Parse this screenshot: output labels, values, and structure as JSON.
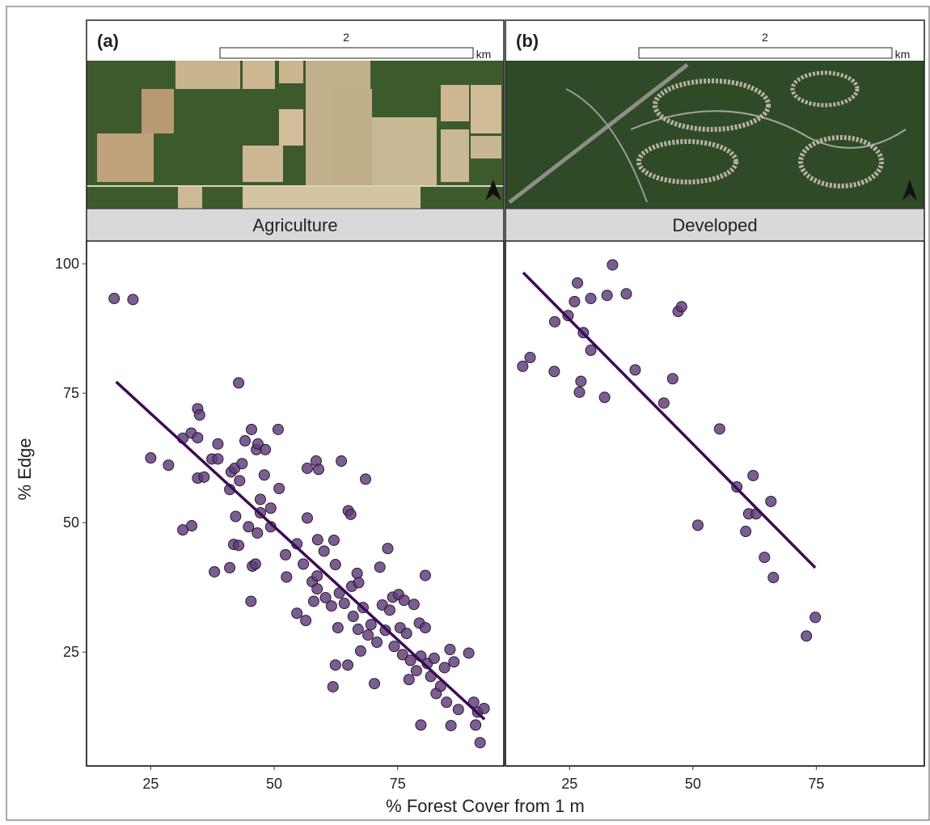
{
  "x_label": "% Forest Cover from 1 m",
  "y_label": "% Edge",
  "chart_data": [
    {
      "type": "scatter",
      "panel_label": "(a)",
      "scale_label": "2",
      "scale_unit": "km",
      "title": "Agriculture",
      "color": "#5e3a78",
      "line_color": "#3d0a57",
      "xlim": [
        12,
        96.5
      ],
      "ylim": [
        3,
        104.4
      ],
      "xticks": [
        25,
        50,
        75
      ],
      "yticks": [
        25,
        50,
        75,
        100
      ],
      "x": [
        17.6,
        21.4,
        25,
        28.6,
        31.5,
        33.2,
        34.5,
        34.9,
        34.5,
        31.5,
        33.3,
        34.5,
        35.8,
        37.4,
        38.6,
        38.6,
        37.9,
        41.0,
        42.8,
        41.3,
        42.0,
        43.0,
        43.5,
        44.1,
        45.4,
        46.4,
        46.7,
        41.0,
        42.2,
        41.8,
        42.8,
        44.8,
        45.6,
        45.3,
        46.2,
        46.6,
        47.2,
        47.2,
        48.0,
        48.2,
        49.3,
        49.3,
        50.8,
        51.0,
        52.3,
        52.5,
        54.6,
        54.6,
        55.9,
        56.4,
        56.7,
        56.7,
        57.7,
        58.0,
        58.5,
        59.0,
        58.7,
        58.7,
        58.8,
        60.1,
        60.4,
        61.6,
        62.1,
        62.4,
        61.9,
        62.4,
        62.9,
        63.2,
        63.6,
        64.2,
        65.0,
        65.5,
        64.9,
        65.7,
        66.0,
        66.8,
        67.0,
        67.1,
        67.5,
        68.0,
        68.5,
        69.0,
        69.6,
        70.3,
        70.8,
        71.4,
        71.9,
        72.5,
        73.0,
        73.4,
        74.0,
        74.3,
        75.2,
        75.5,
        76.0,
        76.3,
        76.8,
        77.3,
        77.6,
        78.3,
        78.8,
        79.4,
        79.7,
        80.6,
        79.7,
        80.6,
        81.0,
        81.7,
        82.4,
        82.8,
        83.7,
        84.5,
        84.9,
        85.6,
        86.4,
        87.3,
        89.4,
        90.4,
        91.2,
        91.7,
        92.5,
        90.8,
        85.8
      ],
      "y": [
        93.3,
        93.1,
        62.5,
        61.1,
        66.3,
        67.3,
        72.0,
        70.8,
        66.4,
        48.6,
        49.4,
        58.6,
        58.8,
        62.3,
        62.3,
        65.2,
        40.5,
        41.3,
        77.0,
        59.8,
        60.5,
        58.1,
        61.4,
        65.8,
        68.0,
        64.1,
        65.2,
        56.4,
        51.2,
        45.8,
        45.6,
        49.2,
        41.6,
        34.8,
        42.0,
        48.0,
        51.9,
        54.5,
        59.2,
        64.1,
        52.8,
        49.2,
        68.0,
        56.6,
        43.8,
        39.5,
        45.9,
        32.5,
        42.0,
        31.1,
        60.5,
        50.9,
        38.6,
        34.8,
        61.9,
        60.3,
        39.7,
        37.2,
        46.7,
        44.5,
        35.5,
        33.9,
        46.6,
        41.9,
        18.3,
        22.5,
        29.7,
        36.4,
        61.9,
        34.4,
        52.3,
        51.6,
        22.5,
        37.7,
        31.9,
        40.2,
        29.4,
        38.4,
        25.2,
        33.6,
        58.4,
        28.3,
        30.3,
        18.9,
        26.9,
        41.4,
        34.1,
        29.2,
        45.0,
        33.1,
        35.6,
        26.1,
        36.1,
        29.7,
        24.5,
        35.0,
        28.6,
        19.7,
        23.4,
        34.2,
        21.4,
        30.6,
        24.2,
        39.8,
        10.9,
        29.7,
        22.8,
        20.3,
        23.8,
        17.0,
        18.4,
        22.0,
        15.3,
        25.5,
        23.1,
        13.9,
        24.8,
        15.3,
        13.4,
        7.5,
        14.1,
        10.9,
        10.8
      ],
      "fit": {
        "x": [
          18.0,
          92.6
        ],
        "y": [
          77.2,
          12.0
        ]
      }
    },
    {
      "type": "scatter",
      "panel_label": "(b)",
      "scale_label": "2",
      "scale_unit": "km",
      "title": "Developed",
      "color": "#5e3a78",
      "line_color": "#3d0a57",
      "xlim": [
        12,
        96.9
      ],
      "ylim": [
        3,
        104.4
      ],
      "xticks": [
        25,
        50,
        75
      ],
      "x": [
        15.5,
        17.0,
        21.9,
        22.0,
        24.7,
        26.0,
        26.6,
        27.8,
        27.3,
        27.0,
        29.3,
        29.3,
        32.1,
        32.6,
        33.7,
        36.5,
        38.3,
        44.1,
        45.9,
        47.0,
        47.7,
        51.0,
        55.4,
        58.9,
        60.7,
        61.3,
        62.2,
        62.8,
        64.5,
        65.8,
        66.3,
        73.0,
        74.8
      ],
      "y": [
        80.2,
        81.9,
        79.2,
        88.8,
        90.0,
        92.7,
        96.3,
        86.7,
        77.3,
        75.2,
        93.3,
        83.3,
        74.2,
        93.9,
        99.8,
        94.2,
        79.5,
        73.1,
        77.8,
        90.8,
        91.7,
        49.5,
        68.1,
        56.9,
        48.3,
        51.7,
        59.1,
        51.7,
        43.3,
        54.1,
        39.4,
        28.1,
        31.7
      ],
      "fit": {
        "x": [
          15.6,
          74.8
        ],
        "y": [
          98.3,
          41.3
        ]
      }
    }
  ]
}
